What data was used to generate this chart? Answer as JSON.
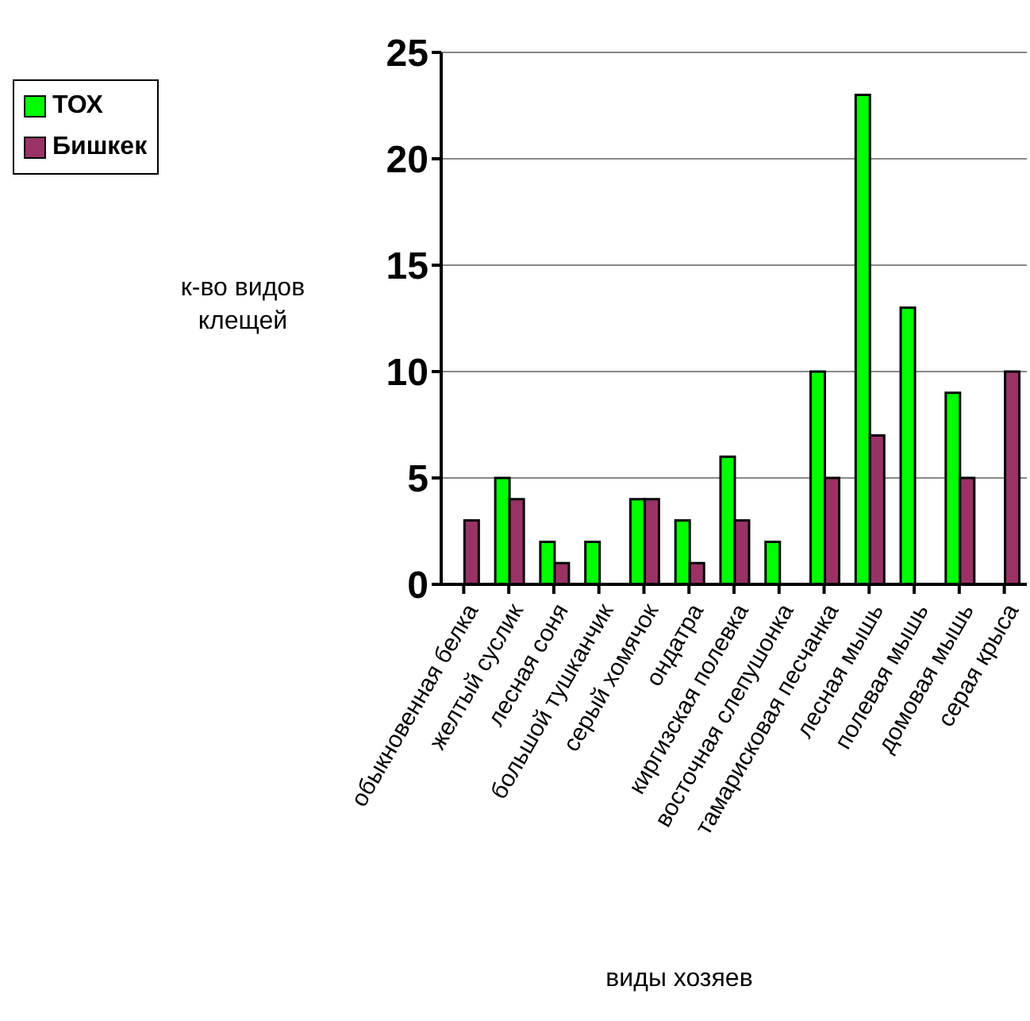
{
  "chart_data": {
    "type": "bar",
    "xlabel": "виды хозяев",
    "ylabel": "к-во видов клещей",
    "categories": [
      "обыкновенная белка",
      "желтый суслик",
      "лесная соня",
      "большой тушканчик",
      "серый хомячок",
      "ондатра",
      "киргизская полевка",
      "восточная слепушонка",
      "тамарисковая песчанка",
      "лесная мышь",
      "полевая мышь",
      "домовая мышь",
      "серая крыса"
    ],
    "series": [
      {
        "name": "ТОХ",
        "color": "#00ff00",
        "values": [
          0,
          5,
          2,
          2,
          4,
          3,
          6,
          2,
          10,
          23,
          13,
          9,
          0
        ]
      },
      {
        "name": "Бишкек",
        "color": "#993366",
        "values": [
          3,
          4,
          1,
          0,
          4,
          1,
          3,
          0,
          5,
          7,
          0,
          5,
          10
        ]
      }
    ],
    "ylim": [
      0,
      25
    ],
    "yticks": [
      0,
      5,
      10,
      15,
      20,
      25
    ],
    "grid": "y",
    "legend": "top left"
  }
}
